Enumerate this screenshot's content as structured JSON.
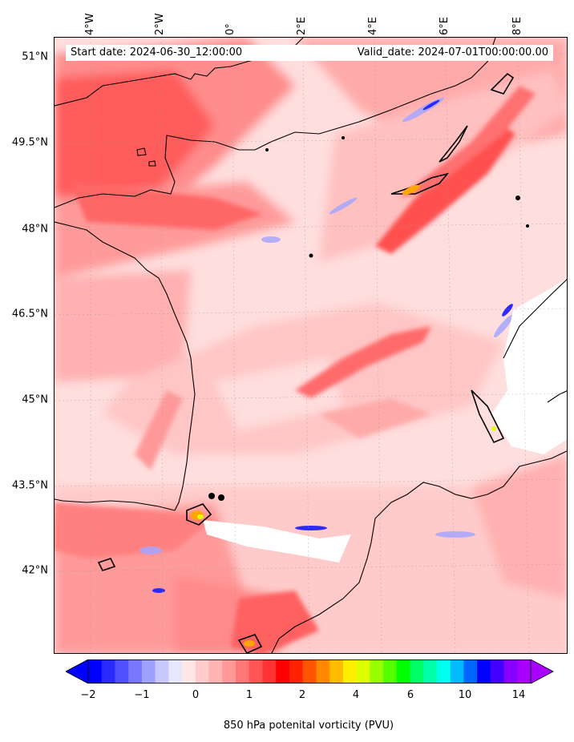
{
  "header": {
    "start_date": "Start date: 2024-06-30_12:00:00",
    "valid_date": "Valid_date: 2024-07-01T00:00:00.00"
  },
  "lat_labels": [
    "51°N",
    "49.5°N",
    "48°N",
    "46.5°N",
    "45°N",
    "43.5°N",
    "42°N"
  ],
  "lon_labels": [
    "4°W",
    "2°W",
    "0°",
    "2°E",
    "4°E",
    "6°E",
    "8°E"
  ],
  "colorbar": {
    "label": "850 hPa potenital vorticity (PVU)",
    "ticks": [
      "−2",
      "−1",
      "0",
      "1",
      "2",
      "4",
      "6",
      "10",
      "14"
    ],
    "colors": [
      "#0000ff",
      "#2a2aff",
      "#5050ff",
      "#7878ff",
      "#a0a0ff",
      "#c8c8ff",
      "#e6e6ff",
      "#ffe6e6",
      "#ffcccc",
      "#ffb3b3",
      "#ff9999",
      "#ff7777",
      "#ff5555",
      "#ff3333",
      "#ff0000",
      "#ff2200",
      "#ff5500",
      "#ff8800",
      "#ffbb00",
      "#ffee00",
      "#ddff00",
      "#99ff00",
      "#55ff00",
      "#00ff00",
      "#00ff66",
      "#00ffaa",
      "#00ffee",
      "#00bbff",
      "#0066ff",
      "#0000ff",
      "#4400ff",
      "#8800ff",
      "#aa00ff"
    ],
    "under_color": "#0000ff",
    "over_color": "#aa00ff"
  }
}
